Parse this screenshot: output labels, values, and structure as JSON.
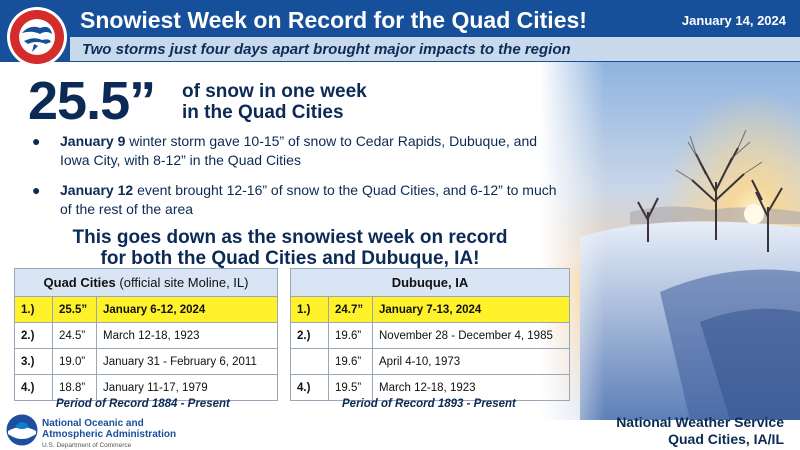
{
  "header": {
    "title": "Snowiest Week on Record for the Quad Cities!",
    "date": "January 14, 2024",
    "subtitle": "Two storms just four days apart brought major impacts to the region",
    "logo_text": "NATIONAL WEATHER SERVICE"
  },
  "stat": {
    "value": "25.5”",
    "text_line1": "of snow in one week",
    "text_line2": "in the Quad Cities"
  },
  "bullets": [
    {
      "date": "January 9",
      "text": "winter storm gave 10-15” of snow to Cedar Rapids, Dubuque, and Iowa City, with 8-12” in the Quad Cities"
    },
    {
      "date": "January 12",
      "text": "event brought 12-16” of snow to the Quad Cities, and 6-12” to much of the rest of the area"
    }
  ],
  "highlight": {
    "line1": "This goes down as the snowiest week on record",
    "line2": "for both the Quad Cities and Dubuque, IA!"
  },
  "table_qc": {
    "title": "Quad Cities",
    "title_note": "(official site Moline, IL)",
    "rows": [
      {
        "rank": "1.)",
        "amount": "25.5”",
        "dates": "January 6-12, 2024"
      },
      {
        "rank": "2.)",
        "amount": "24.5”",
        "dates": "March 12-18, 1923"
      },
      {
        "rank": "3.)",
        "amount": "19.0”",
        "dates": "January 31 - February 6, 2011"
      },
      {
        "rank": "4.)",
        "amount": "18.8”",
        "dates": "January 11-17, 1979"
      }
    ],
    "period": "Period of Record 1884 - Present"
  },
  "table_dbq": {
    "title": "Dubuque, IA",
    "rows": [
      {
        "rank": "1.)",
        "amount": "24.7”",
        "dates": "January 7-13, 2024"
      },
      {
        "rank": "2.)",
        "amount": "19.6”",
        "dates": "November 28 - December 4, 1985"
      },
      {
        "rank": "",
        "amount": "19.6”",
        "dates": "April 4-10, 1973"
      },
      {
        "rank": "4.)",
        "amount": "19.5”",
        "dates": "March 12-18, 1923"
      }
    ],
    "period": "Period of Record 1893 - Present"
  },
  "footer": {
    "noaa_line1": "National Oceanic and",
    "noaa_line2": "Atmospheric Administration",
    "noaa_line3": "U.S. Department of Commerce",
    "noaa_logo_text": "NOAA",
    "office_line1": "National Weather Service",
    "office_line2": "Quad Cities, IA/IL"
  },
  "colors": {
    "header": "#17509a",
    "highlight_row": "#fff22a",
    "navy_text": "#0b2a55"
  }
}
